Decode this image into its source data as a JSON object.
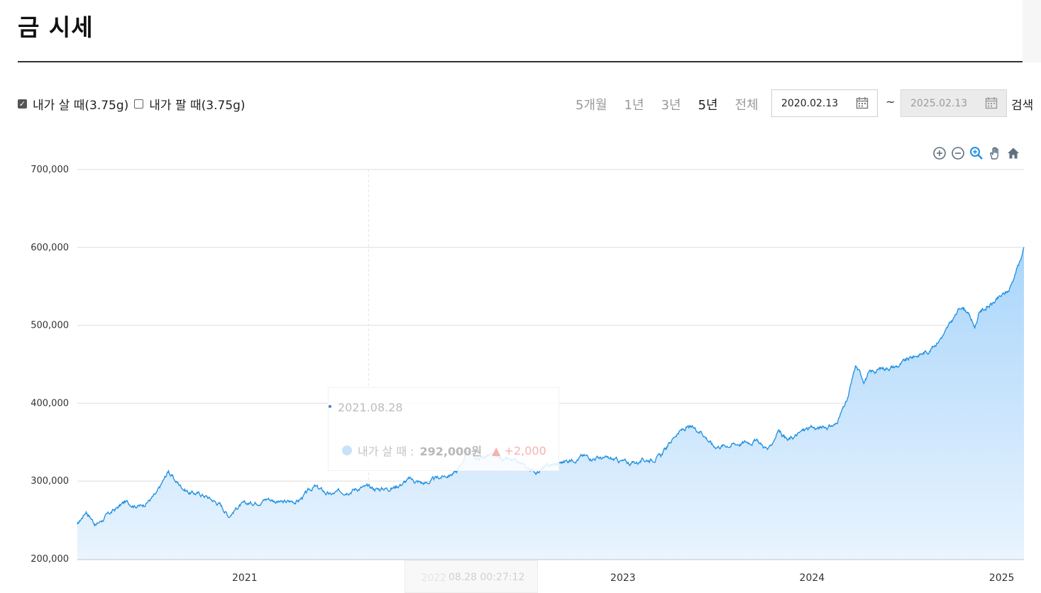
{
  "page": {
    "title": "금 시세"
  },
  "options": {
    "checkboxes": [
      {
        "label": "내가 살 때(3.75g)",
        "checked": true
      },
      {
        "label": "내가 팔 때(3.75g)",
        "checked": false
      }
    ]
  },
  "periods": [
    {
      "label": "5개월",
      "active": false
    },
    {
      "label": "1년",
      "active": false
    },
    {
      "label": "3년",
      "active": false
    },
    {
      "label": "5년",
      "active": true
    },
    {
      "label": "전체",
      "active": false
    }
  ],
  "date_range": {
    "start": "2020.02.13",
    "separator": "~",
    "end": "2025.02.13",
    "search_label": "검색"
  },
  "toolbar_icons": [
    "zoom-in-icon",
    "zoom-out-icon",
    "zoom-select-icon",
    "pan-hand-icon",
    "reset-home-icon"
  ],
  "colors": {
    "line": "#1f8fe0",
    "fill_top": "#a9d5fb",
    "fill_bottom": "#e9f4fe",
    "grid": "#dedede",
    "accent_up": "#e85a5a"
  },
  "tooltip": {
    "date": "2021.08.28",
    "series": "내가 살 때 :",
    "value": "292,000원",
    "change_symbol": "▲",
    "change": "+2,000"
  },
  "x_hover": {
    "label": "08.28 00:27:12"
  },
  "chart_data": {
    "type": "area",
    "series": [
      {
        "name": "내가 살 때(3.75g)",
        "x": [
          "2020-02-13",
          "2020-03-01",
          "2020-03-20",
          "2020-04-15",
          "2020-05-15",
          "2020-06-15",
          "2020-07-15",
          "2020-08-07",
          "2020-08-20",
          "2020-09-15",
          "2020-10-15",
          "2020-11-15",
          "2020-12-01",
          "2020-12-20",
          "2021-01-15",
          "2021-02-15",
          "2021-03-15",
          "2021-04-15",
          "2021-05-15",
          "2021-06-15",
          "2021-07-15",
          "2021-08-15",
          "2021-09-15",
          "2021-10-15",
          "2021-11-15",
          "2021-12-15",
          "2022-01-15",
          "2022-02-15",
          "2022-03-08",
          "2022-03-25",
          "2022-04-15",
          "2022-05-15",
          "2022-06-15",
          "2022-07-15",
          "2022-08-15",
          "2022-09-15",
          "2022-10-15",
          "2022-11-15",
          "2022-12-15",
          "2023-01-15",
          "2023-02-15",
          "2023-03-15",
          "2023-04-15",
          "2023-05-05",
          "2023-06-01",
          "2023-06-25",
          "2023-07-15",
          "2023-08-15",
          "2023-09-15",
          "2023-10-10",
          "2023-10-28",
          "2023-11-15",
          "2023-12-05",
          "2023-12-20",
          "2024-01-15",
          "2024-02-15",
          "2024-03-10",
          "2024-03-25",
          "2024-04-10",
          "2024-04-20",
          "2024-05-15",
          "2024-06-15",
          "2024-07-15",
          "2024-08-15",
          "2024-09-15",
          "2024-10-15",
          "2024-10-25",
          "2024-11-10",
          "2024-11-20",
          "2024-12-15",
          "2025-01-15",
          "2025-02-13"
        ],
        "values": [
          243000,
          262000,
          244000,
          258000,
          273000,
          268000,
          283000,
          313000,
          300000,
          286000,
          282000,
          270000,
          256000,
          268000,
          272000,
          278000,
          272000,
          275000,
          293000,
          282000,
          288000,
          292000,
          290000,
          292000,
          302000,
          297000,
          305000,
          312000,
          340000,
          328000,
          333000,
          328000,
          322000,
          312000,
          320000,
          326000,
          332000,
          330000,
          327000,
          323000,
          327000,
          332000,
          362000,
          368000,
          365000,
          345000,
          346000,
          349000,
          352000,
          340000,
          366000,
          352000,
          360000,
          367000,
          368000,
          372000,
          405000,
          448000,
          430000,
          438000,
          445000,
          448000,
          460000,
          468000,
          492000,
          525000,
          520000,
          498000,
          518000,
          528000,
          545000,
          598000
        ]
      }
    ],
    "xlabel": "",
    "ylabel": "",
    "x_ticks": [
      "2021",
      "2022",
      "2023",
      "2024",
      "2025"
    ],
    "y_ticks": [
      "700,000",
      "600,000",
      "500,000",
      "400,000",
      "300,000",
      "200,000"
    ],
    "ylim": [
      200000,
      700000
    ],
    "xlim": [
      "2020-02-13",
      "2025-02-13"
    ],
    "grid": true
  }
}
